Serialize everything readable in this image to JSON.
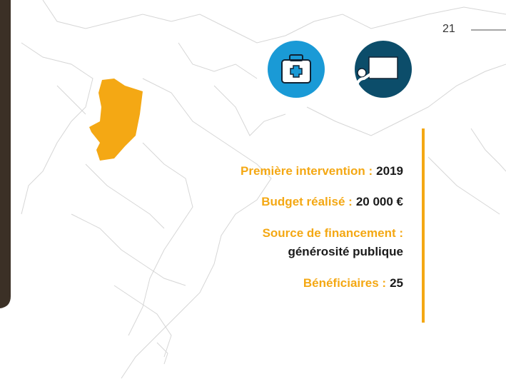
{
  "page_number": "21",
  "items": [
    {
      "label": "Première intervention :",
      "value": "2019"
    },
    {
      "label": "Budget réalisé :",
      "value": "20 000 €"
    },
    {
      "label": "Source de financement :",
      "value": "générosité publique"
    },
    {
      "label": "Bénéficiaires :",
      "value": "25"
    }
  ]
}
